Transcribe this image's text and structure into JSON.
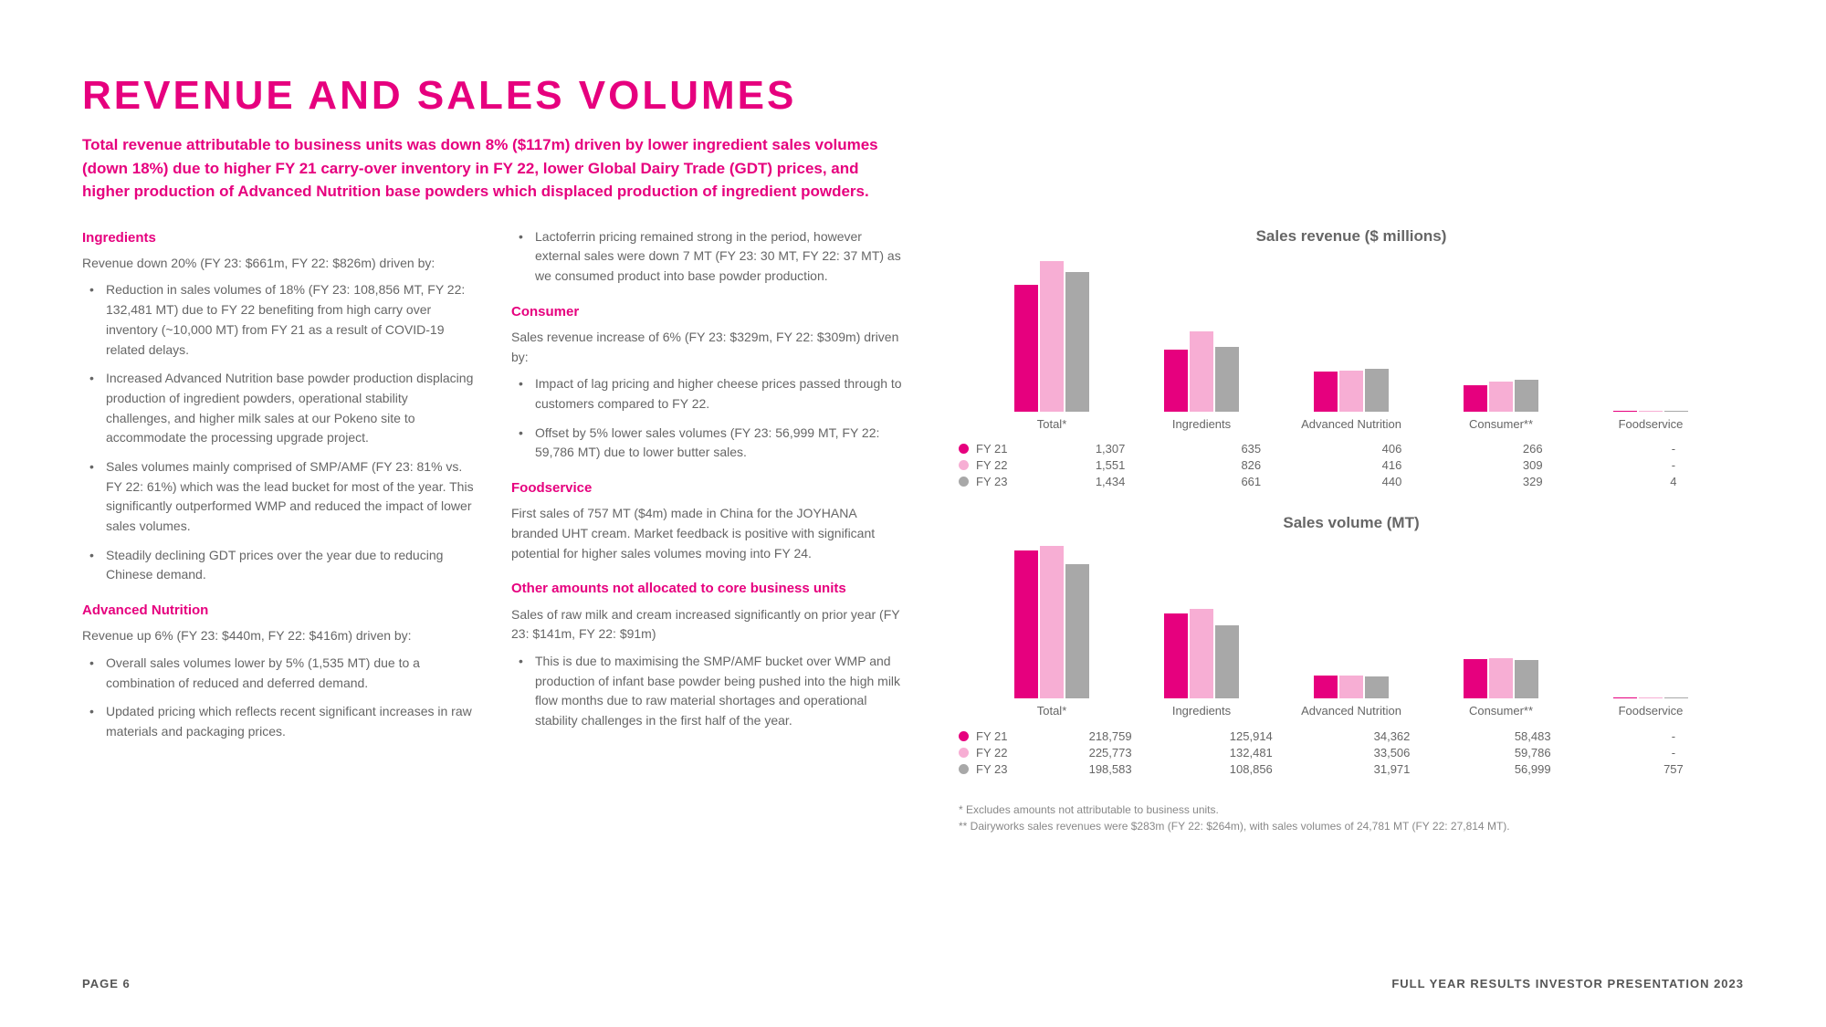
{
  "title": "REVENUE AND SALES VOLUMES",
  "subtitle": "Total revenue attributable to business units was down 8% ($117m) driven by lower ingredient sales volumes (down 18%) due to higher FY 21 carry-over inventory in FY 22, lower Global Dairy Trade (GDT) prices, and higher production of Advanced Nutrition base powders which displaced production of ingredient powders.",
  "left": {
    "ingredients": {
      "h": "Ingredients",
      "intro": "Revenue down 20% (FY 23: $661m, FY 22: $826m) driven by:",
      "b1": "Reduction in sales volumes of 18% (FY 23: 108,856 MT, FY 22: 132,481 MT) due to FY 22 benefiting from high carry over inventory (~10,000 MT) from FY 21 as a result of COVID-19 related delays.",
      "b2": "Increased Advanced Nutrition base powder production displacing production of ingredient powders, operational stability challenges, and higher milk sales at our Pokeno site to accommodate the processing upgrade project.",
      "b3": "Sales volumes mainly comprised of SMP/AMF (FY 23: 81% vs. FY 22: 61%) which was the lead bucket for most of the year. This significantly outperformed WMP and reduced the impact of lower sales volumes.",
      "b4": "Steadily declining GDT prices over the year due to reducing Chinese demand."
    },
    "advnut": {
      "h": "Advanced Nutrition",
      "intro": "Revenue up 6% (FY 23: $440m, FY 22: $416m) driven by:",
      "b1": "Overall sales volumes lower by 5% (1,535 MT) due to a combination of reduced and deferred demand.",
      "b2": "Updated pricing which reflects recent significant increases in raw materials and packaging prices."
    }
  },
  "mid": {
    "lacto": "Lactoferrin pricing remained strong in the period, however external sales were down 7 MT (FY 23: 30 MT, FY 22: 37 MT) as we consumed product into base powder production.",
    "consumer": {
      "h": "Consumer",
      "intro": "Sales revenue increase of 6% (FY 23: $329m, FY 22: $309m) driven by:",
      "b1": "Impact of lag pricing and higher cheese prices passed through to customers compared to FY 22.",
      "b2": "Offset by 5% lower sales volumes (FY 23: 56,999 MT, FY 22: 59,786 MT) due to lower butter sales."
    },
    "foodservice": {
      "h": "Foodservice",
      "p": "First sales of 757 MT ($4m) made in China for the JOYHANA branded UHT cream. Market feedback is positive with significant potential for higher sales volumes moving into FY 24."
    },
    "other": {
      "h": "Other amounts not allocated to core business units",
      "intro": "Sales of raw milk and cream increased significantly on prior year (FY 23: $141m, FY 22: $91m)",
      "b1": "This is due to maximising the SMP/AMF bucket over WMP and production of infant base powder being pushed into the high milk flow months due to raw material shortages and operational stability challenges in the first half of the year."
    }
  },
  "charts": {
    "colors": {
      "fy21": "#e6007e",
      "fy22": "#f7aed4",
      "fy23": "#a8a8a8"
    },
    "categories": [
      "Total*",
      "Ingredients",
      "Advanced\nNutrition",
      "Consumer**",
      "Foodservice"
    ],
    "categories_display": {
      "c0": "Total*",
      "c1": "Ingredients",
      "c2": "Advanced Nutrition",
      "c3": "Consumer**",
      "c4": "Foodservice"
    },
    "revenue": {
      "title": "Sales revenue ($ millions)",
      "max": 1600,
      "fy21": [
        1307,
        635,
        406,
        266,
        0
      ],
      "fy22": [
        1551,
        826,
        416,
        309,
        0
      ],
      "fy23": [
        1434,
        661,
        440,
        329,
        4
      ],
      "table": {
        "fy21": {
          "c0": "1,307",
          "c1": "635",
          "c2": "406",
          "c3": "266",
          "c4": "-"
        },
        "fy22": {
          "c0": "1,551",
          "c1": "826",
          "c2": "416",
          "c3": "309",
          "c4": "-"
        },
        "fy23": {
          "c0": "1,434",
          "c1": "661",
          "c2": "440",
          "c3": "329",
          "c4": "4"
        }
      }
    },
    "volume": {
      "title": "Sales volume (MT)",
      "max": 230000,
      "fy21": [
        218759,
        125914,
        34362,
        58483,
        0
      ],
      "fy22": [
        225773,
        132481,
        33506,
        59786,
        0
      ],
      "fy23": [
        198583,
        108856,
        31971,
        56999,
        757
      ],
      "table": {
        "fy21": {
          "c0": "218,759",
          "c1": "125,914",
          "c2": "34,362",
          "c3": "58,483",
          "c4": "-"
        },
        "fy22": {
          "c0": "225,773",
          "c1": "132,481",
          "c2": "33,506",
          "c3": "59,786",
          "c4": "-"
        },
        "fy23": {
          "c0": "198,583",
          "c1": "108,856",
          "c2": "31,971",
          "c3": "56,999",
          "c4": "757"
        }
      }
    },
    "legend": {
      "l1": "FY 21",
      "l2": "FY 22",
      "l3": "FY 23"
    }
  },
  "footnotes": {
    "n1": "*   Excludes amounts not attributable to business units.",
    "n2": "**  Dairyworks sales revenues were $283m (FY 22: $264m), with sales volumes of 24,781 MT (FY 22: 27,814 MT)."
  },
  "footer": {
    "left": "PAGE 6",
    "right": "FULL YEAR RESULTS INVESTOR PRESENTATION 2023"
  }
}
